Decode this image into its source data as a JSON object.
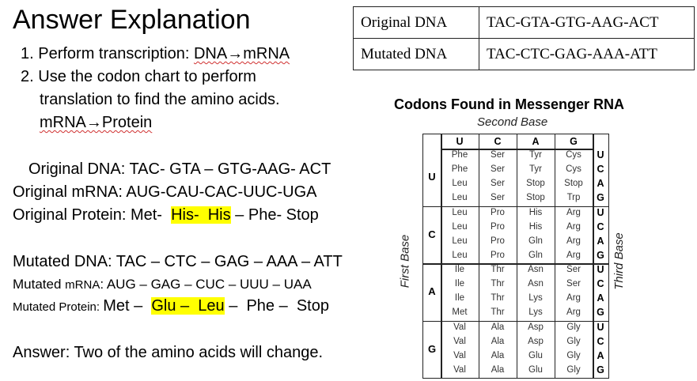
{
  "title": "Answer Explanation",
  "steps": [
    {
      "num": "1.",
      "text": "Perform transcription: ",
      "squiggle": "DNA→mRNA"
    },
    {
      "num": "2.",
      "line1": "Use the codon chart to perform",
      "line2": "translation to find the amino acids.",
      "squiggle": "mRNA→Protein"
    }
  ],
  "original": {
    "dna": "Original DNA: TAC- GTA – GTG-AAG- ACT",
    "mrna": "Original mRNA: AUG-CAU-CAC-UUC-UGA",
    "protein_prefix": "Original Protein: Met-  ",
    "protein_hl": "His-  His",
    "protein_suffix": " – Phe- Stop"
  },
  "mutated": {
    "dna": "Mutated DNA: TAC – CTC – GAG – AAA – ATT",
    "mrna_label": "Mutated ",
    "mrna_small": "mRNA",
    "mrna_rest": ": AUG – GAG – CUC – UUU – UAA",
    "protein_label": "Mutated Protein: ",
    "protein_prefix": "Met –  ",
    "protein_hl": "Glu –  Leu",
    "protein_suffix": " –  Phe –  Stop"
  },
  "answer": "Answer: Two of the amino acids will change.",
  "dna_table": [
    {
      "label": "Original DNA",
      "seq": "TAC-GTA-GTG-AAG-ACT"
    },
    {
      "label": "Mutated DNA",
      "seq": "TAC-CTC-GAG-AAA-ATT"
    }
  ],
  "codon_chart": {
    "title": "Codons Found in Messenger RNA",
    "second_base": "Second Base",
    "first_base": "First Base",
    "third_base": "Third Base",
    "columns": [
      "U",
      "C",
      "A",
      "G"
    ],
    "rows": [
      "U",
      "C",
      "A",
      "G"
    ],
    "third": [
      "U",
      "C",
      "A",
      "G"
    ],
    "blocks": [
      [
        [
          "Phe",
          "Phe",
          "Leu",
          "Leu"
        ],
        [
          "Ser",
          "Ser",
          "Ser",
          "Ser"
        ],
        [
          "Tyr",
          "Tyr",
          "Stop",
          "Stop"
        ],
        [
          "Cys",
          "Cys",
          "Stop",
          "Trp"
        ]
      ],
      [
        [
          "Leu",
          "Leu",
          "Leu",
          "Leu"
        ],
        [
          "Pro",
          "Pro",
          "Pro",
          "Pro"
        ],
        [
          "His",
          "His",
          "Gln",
          "Gln"
        ],
        [
          "Arg",
          "Arg",
          "Arg",
          "Arg"
        ]
      ],
      [
        [
          "Ile",
          "Ile",
          "Ile",
          "Met"
        ],
        [
          "Thr",
          "Thr",
          "Thr",
          "Thr"
        ],
        [
          "Asn",
          "Asn",
          "Lys",
          "Lys"
        ],
        [
          "Ser",
          "Ser",
          "Arg",
          "Arg"
        ]
      ],
      [
        [
          "Val",
          "Val",
          "Val",
          "Val"
        ],
        [
          "Ala",
          "Ala",
          "Ala",
          "Ala"
        ],
        [
          "Asp",
          "Asp",
          "Glu",
          "Glu"
        ],
        [
          "Gly",
          "Gly",
          "Gly",
          "Gly"
        ]
      ]
    ]
  }
}
